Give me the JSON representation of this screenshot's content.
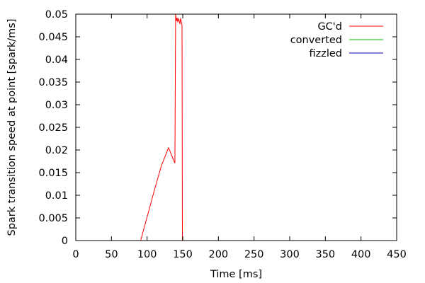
{
  "chart_data": {
    "type": "line",
    "title": "",
    "xlabel": "Time [ms]",
    "ylabel": "Spark transition speed at point [spark/ms]",
    "xlim": [
      0,
      450
    ],
    "ylim": [
      0,
      0.05
    ],
    "x_ticks": [
      0,
      50,
      100,
      150,
      200,
      250,
      300,
      350,
      400,
      450
    ],
    "x_tick_labels": [
      "0",
      "50",
      "100",
      "150",
      "200",
      "250",
      "300",
      "350",
      "400",
      "450"
    ],
    "y_ticks": [
      0,
      0.005,
      0.01,
      0.015,
      0.02,
      0.025,
      0.03,
      0.035,
      0.04,
      0.045,
      0.05
    ],
    "y_tick_labels": [
      "0",
      "0.005",
      "0.01",
      "0.015",
      "0.02",
      "0.025",
      "0.03",
      "0.035",
      "0.04",
      "0.045",
      "0.05"
    ],
    "grid": false,
    "legend_position": "top-right",
    "series": [
      {
        "name": "GC'd",
        "color": "#ff0000",
        "points": [
          [
            91,
            0
          ],
          [
            93,
            0.0012
          ],
          [
            100,
            0.0052
          ],
          [
            110,
            0.011
          ],
          [
            120,
            0.0165
          ],
          [
            130,
            0.0205
          ],
          [
            132,
            0.0198
          ],
          [
            136,
            0.0182
          ],
          [
            139,
            0.0171
          ],
          [
            140,
            0.05
          ],
          [
            141,
            0.0485
          ],
          [
            142,
            0.0492
          ],
          [
            143,
            0.0482
          ],
          [
            144,
            0.049
          ],
          [
            145,
            0.0486
          ],
          [
            146,
            0.0478
          ],
          [
            147,
            0.0491
          ],
          [
            148,
            0.0483
          ],
          [
            149,
            0.0475
          ],
          [
            149.5,
            0
          ],
          [
            180,
            0
          ],
          [
            260,
            0
          ],
          [
            340,
            0
          ],
          [
            415,
            0
          ]
        ]
      },
      {
        "name": "converted",
        "color": "#00bb00",
        "points": []
      },
      {
        "name": "fizzled",
        "color": "#0000aa",
        "points": [
          [
            18,
            0
          ],
          [
            75,
            0
          ],
          [
            85,
            0
          ],
          [
            135,
            0
          ],
          [
            140,
            0
          ],
          [
            180,
            0
          ],
          [
            260,
            0
          ],
          [
            340,
            0
          ],
          [
            415,
            0
          ]
        ]
      }
    ]
  }
}
